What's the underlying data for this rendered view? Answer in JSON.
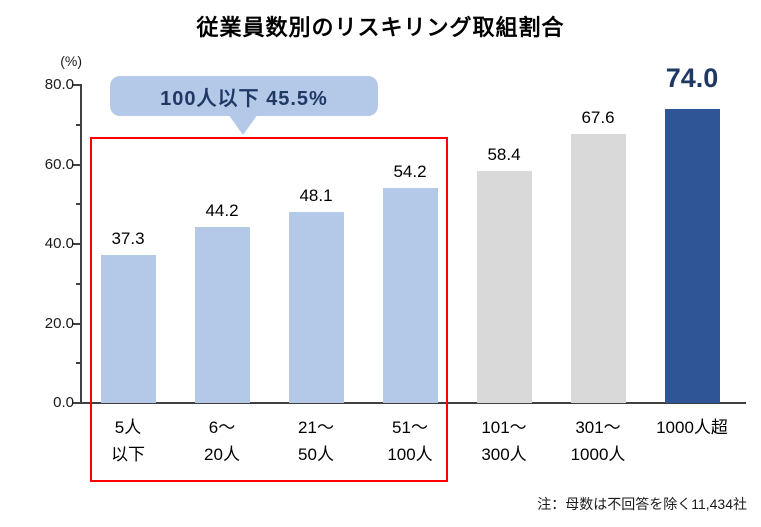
{
  "title": "従業員数別のリスキリング取組割合",
  "callout": {
    "text": "100人以下  45.5%"
  },
  "note": "注：母数は不回答を除く11,434社",
  "colors": {
    "bar_light_blue": "#b4c8e8",
    "bar_gray": "#d9d9d9",
    "bar_dark_blue": "#2f5597",
    "highlight_box_red": "#ff0000",
    "callout_bg": "#b4c8e8",
    "navy_text": "#1f3864",
    "axis": "#404040"
  },
  "chart_data": {
    "type": "bar",
    "title": "従業員数別のリスキリング取組割合",
    "xlabel": "",
    "ylabel": "(%)",
    "ylim": [
      0,
      80
    ],
    "yticks": [
      0,
      20,
      40,
      60,
      80
    ],
    "y_minor_ticks": [
      10,
      30,
      50,
      70
    ],
    "grid": false,
    "legend": false,
    "categories": [
      "5人\n以下",
      "6～\n20人",
      "21～\n50人",
      "51～\n100人",
      "101～\n300人",
      "301～\n1000人",
      "1000人超"
    ],
    "values": [
      37.3,
      44.2,
      48.1,
      54.2,
      58.4,
      67.6,
      74.0
    ],
    "bar_colors": [
      "#b4c8e8",
      "#b4c8e8",
      "#b4c8e8",
      "#b4c8e8",
      "#d9d9d9",
      "#d9d9d9",
      "#2f5597"
    ],
    "annotations": [
      {
        "type": "callout",
        "text": "100人以下  45.5%",
        "refers_to": "first four bars"
      },
      {
        "type": "highlight-box",
        "color": "#ff0000",
        "refers_to": "bars 5人以下 through 51～100人"
      }
    ],
    "footnote": "注：母数は不回答を除く11,434社"
  }
}
